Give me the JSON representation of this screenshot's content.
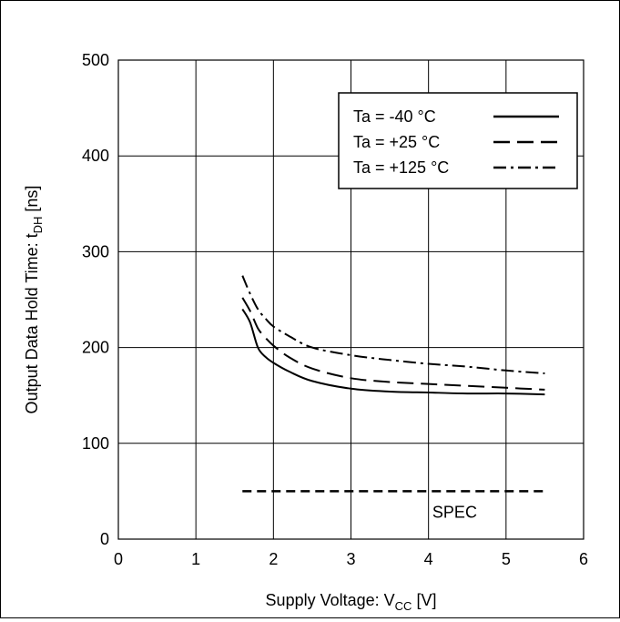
{
  "chart_data": {
    "type": "line",
    "xlabel": {
      "main": "Supply Voltage: V",
      "sub": "CC",
      "unit": " [V]"
    },
    "ylabel": {
      "main": "Output Data Hold Time: t",
      "sub": "DH",
      "unit": " [ns]"
    },
    "xlim": [
      0,
      6
    ],
    "ylim": [
      0,
      500
    ],
    "x_ticks": [
      "0",
      "1",
      "2",
      "3",
      "4",
      "5",
      "6"
    ],
    "y_ticks": [
      "0",
      "100",
      "200",
      "300",
      "400",
      "500"
    ],
    "grid": true,
    "legend_position": "top-right",
    "series": [
      {
        "name": "Ta = -40 °C",
        "style": "solid",
        "points": [
          [
            1.6,
            240
          ],
          [
            1.7,
            226
          ],
          [
            1.8,
            200
          ],
          [
            1.9,
            190
          ],
          [
            2.0,
            184
          ],
          [
            2.2,
            175
          ],
          [
            2.5,
            165
          ],
          [
            3.0,
            157
          ],
          [
            3.5,
            154
          ],
          [
            4.0,
            153
          ],
          [
            4.5,
            152
          ],
          [
            5.0,
            152
          ],
          [
            5.5,
            151
          ]
        ]
      },
      {
        "name": "Ta = +25 °C",
        "style": "dashed",
        "points": [
          [
            1.6,
            252
          ],
          [
            1.7,
            238
          ],
          [
            1.8,
            220
          ],
          [
            1.9,
            210
          ],
          [
            2.0,
            202
          ],
          [
            2.2,
            190
          ],
          [
            2.5,
            178
          ],
          [
            3.0,
            168
          ],
          [
            3.5,
            164
          ],
          [
            4.0,
            162
          ],
          [
            4.5,
            160
          ],
          [
            5.0,
            158
          ],
          [
            5.5,
            156
          ]
        ]
      },
      {
        "name": "Ta = +125 °C",
        "style": "dashdot",
        "points": [
          [
            1.6,
            275
          ],
          [
            1.7,
            256
          ],
          [
            1.8,
            240
          ],
          [
            1.9,
            230
          ],
          [
            2.0,
            222
          ],
          [
            2.2,
            212
          ],
          [
            2.5,
            200
          ],
          [
            3.0,
            192
          ],
          [
            3.5,
            187
          ],
          [
            4.0,
            183
          ],
          [
            4.5,
            180
          ],
          [
            5.0,
            176
          ],
          [
            5.5,
            173
          ]
        ]
      }
    ],
    "spec": {
      "label": "SPEC",
      "style": "dashed",
      "value": 50,
      "x_start": 1.6,
      "x_end": 5.5
    }
  }
}
